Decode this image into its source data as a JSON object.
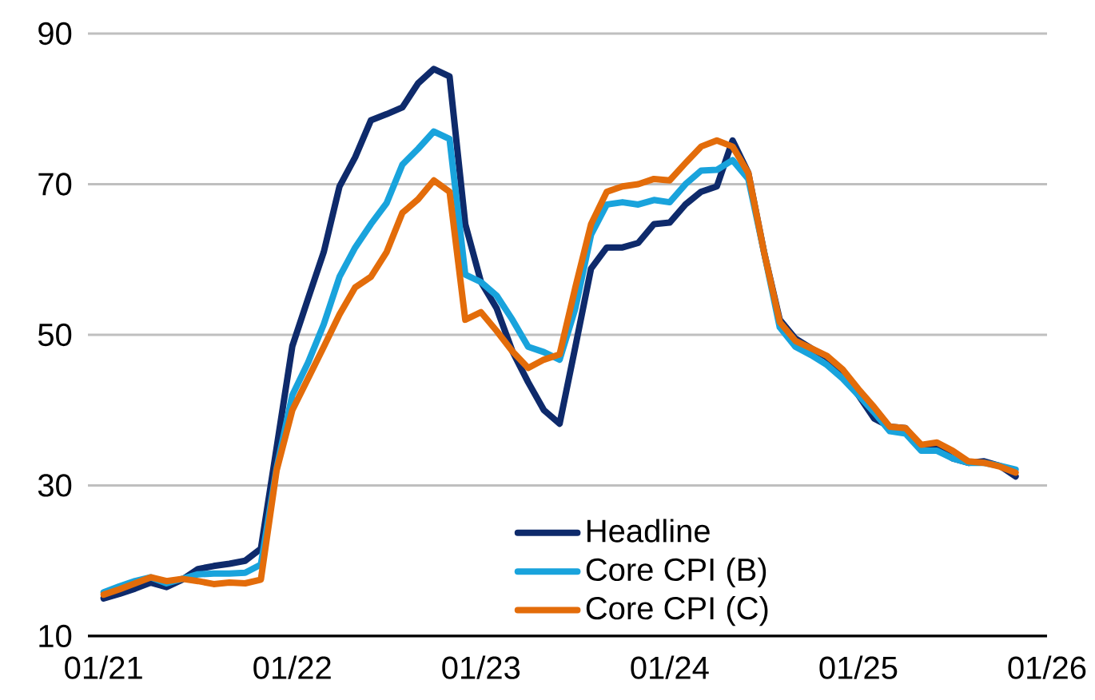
{
  "chart_data": {
    "type": "line",
    "x": [
      "2021-01",
      "2021-02",
      "2021-03",
      "2021-04",
      "2021-05",
      "2021-06",
      "2021-07",
      "2021-08",
      "2021-09",
      "2021-10",
      "2021-11",
      "2021-12",
      "2022-01",
      "2022-02",
      "2022-03",
      "2022-04",
      "2022-05",
      "2022-06",
      "2022-07",
      "2022-08",
      "2022-09",
      "2022-10",
      "2022-11",
      "2022-12",
      "2023-01",
      "2023-02",
      "2023-03",
      "2023-04",
      "2023-05",
      "2023-06",
      "2023-07",
      "2023-08",
      "2023-09",
      "2023-10",
      "2023-11",
      "2023-12",
      "2024-01",
      "2024-02",
      "2024-03",
      "2024-04",
      "2024-05",
      "2024-06",
      "2024-07",
      "2024-08",
      "2024-09",
      "2024-10",
      "2024-11",
      "2024-12",
      "2025-01",
      "2025-02",
      "2025-03",
      "2025-04",
      "2025-05",
      "2025-06",
      "2025-07",
      "2025-08",
      "2025-09",
      "2025-10",
      "2025-11"
    ],
    "series": [
      {
        "name": "Headline",
        "color": "#0e2a6b",
        "values": [
          15,
          15.6,
          16.3,
          17.1,
          16.5,
          17.5,
          18.9,
          19.3,
          19.6,
          20,
          21.6,
          35,
          48.5,
          54.8,
          61,
          69.7,
          73.6,
          78.5,
          79.3,
          80.2,
          83.4,
          85.3,
          84.3,
          64.7,
          57,
          53.5,
          47.8,
          43.7,
          40,
          38.2,
          48.4,
          58.8,
          61.6,
          61.6,
          62.2,
          64.7,
          64.9,
          67.3,
          69,
          69.7,
          75.8,
          71.5,
          61,
          52,
          49.5,
          48.2,
          47,
          45,
          42,
          38.9,
          37.8,
          37.6,
          35,
          35,
          33.6,
          33,
          33.2,
          32.6,
          31.2
        ]
      },
      {
        "name": "Core CPI (B)",
        "color": "#19a3dc",
        "values": [
          15.8,
          16.6,
          17.3,
          17.8,
          17,
          17.6,
          18.2,
          18.3,
          18.3,
          18.4,
          19.5,
          32.3,
          42,
          46.3,
          51.4,
          57.7,
          61.6,
          64.7,
          67.5,
          72.6,
          74.7,
          77,
          76,
          58,
          57,
          55.2,
          52,
          48.4,
          47.7,
          46.7,
          53.5,
          63.3,
          67.3,
          67.6,
          67.3,
          67.9,
          67.6,
          70,
          71.8,
          71.9,
          73.2,
          70.7,
          61,
          51,
          48.4,
          47.3,
          46,
          44.2,
          42,
          39.7,
          37.2,
          36.9,
          34.6,
          34.6,
          33.6,
          33,
          33,
          32.6,
          32.1
        ]
      },
      {
        "name": "Core CPI (C)",
        "color": "#e36c0a",
        "values": [
          15.5,
          16.2,
          17,
          17.8,
          17.3,
          17.6,
          17.3,
          16.9,
          17.1,
          17,
          17.5,
          32,
          40,
          44.2,
          48.4,
          52.7,
          56.3,
          57.7,
          61,
          66.2,
          68,
          70.5,
          69,
          52,
          53,
          50.5,
          47.8,
          45.6,
          46.7,
          47.4,
          56.3,
          64.7,
          69,
          69.7,
          70,
          70.7,
          70.5,
          72.8,
          75,
          75.8,
          75,
          71.5,
          61,
          51.7,
          49.2,
          48.2,
          47.2,
          45.4,
          42.8,
          40.4,
          37.8,
          37.6,
          35.4,
          35.7,
          34.6,
          33.2,
          33,
          32.5,
          31.7
        ]
      }
    ],
    "xlim": [
      "2020-12",
      "2026-01"
    ],
    "xticks": [
      {
        "value": "2021-01",
        "label": "01/21"
      },
      {
        "value": "2022-01",
        "label": "01/22"
      },
      {
        "value": "2023-01",
        "label": "01/23"
      },
      {
        "value": "2024-01",
        "label": "01/24"
      },
      {
        "value": "2025-01",
        "label": "01/25"
      },
      {
        "value": "2026-01",
        "label": "01/26"
      }
    ],
    "ylim": [
      10,
      90
    ],
    "yticks": [
      10,
      30,
      50,
      70,
      90
    ],
    "grid": "y",
    "legend": "bottom",
    "marker": "none",
    "line_style": "solid"
  }
}
